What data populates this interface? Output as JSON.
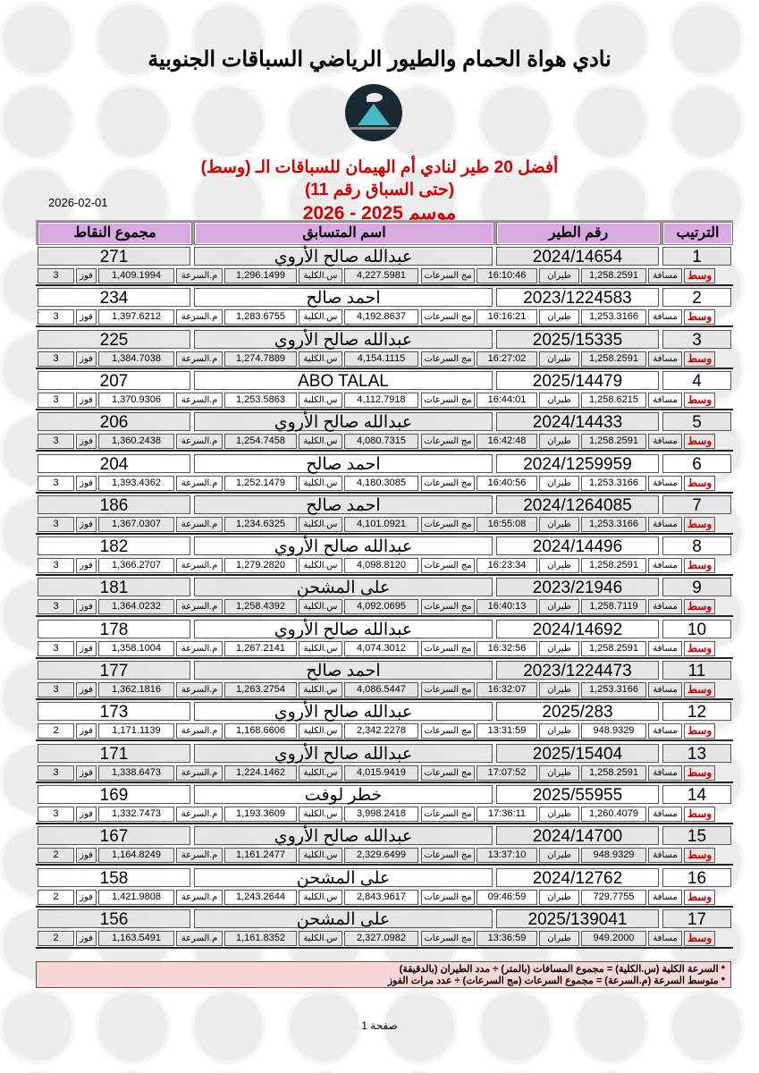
{
  "title": "نادي هواة الحمام والطيور الرياضي السباقات الجنوبية",
  "subtitle": {
    "line1": "أفضل 20 طير لنادي أم الهيمان للسباقات الـ (وسط)",
    "line2": "(حتى السباق رقم 11)",
    "line3": "موسم 2025 - 2026"
  },
  "date": "2026-02-01",
  "headers": {
    "rank": "الترتيب",
    "ring": "رقم الطير",
    "name": "اسم المتسابق",
    "points": "مجموع النقاط"
  },
  "labels": {
    "category": "وسط",
    "distance": "مسافة",
    "flight": "طيران",
    "speed_sum": "مج السرعات",
    "total_speed": "س.الكلية",
    "avg_speed": "م.السرعة",
    "wins": "فوز"
  },
  "rows": [
    {
      "rank": "1",
      "ring": "2024/14654",
      "name": "عبدالله صالح الأروي",
      "points": "271",
      "distance": "1,258.2591",
      "flight": "16:10:46",
      "speed_sum": "4,227.5981",
      "total_speed": "1,296.1499",
      "avg_speed": "1,409.1994",
      "wins": "3"
    },
    {
      "rank": "2",
      "ring": "2023/1224583",
      "name": "احمد صالح",
      "points": "234",
      "distance": "1,253.3166",
      "flight": "16:16:21",
      "speed_sum": "4,192.8637",
      "total_speed": "1,283.6755",
      "avg_speed": "1,397.6212",
      "wins": "3"
    },
    {
      "rank": "3",
      "ring": "2025/15335",
      "name": "عبدالله صالح الأروي",
      "points": "225",
      "distance": "1,258.2591",
      "flight": "16:27:02",
      "speed_sum": "4,154.1115",
      "total_speed": "1,274.7889",
      "avg_speed": "1,384.7038",
      "wins": "3"
    },
    {
      "rank": "4",
      "ring": "2025/14479",
      "name": "ABO  TALAL",
      "points": "207",
      "distance": "1,258.6215",
      "flight": "16:44:01",
      "speed_sum": "4,112.7918",
      "total_speed": "1,253.5863",
      "avg_speed": "1,370.9306",
      "wins": "3"
    },
    {
      "rank": "5",
      "ring": "2024/14433",
      "name": "عبدالله صالح الأروي",
      "points": "206",
      "distance": "1,258.2591",
      "flight": "16:42:48",
      "speed_sum": "4,080.7315",
      "total_speed": "1,254.7458",
      "avg_speed": "1,360.2438",
      "wins": "3"
    },
    {
      "rank": "6",
      "ring": "2024/1259959",
      "name": "احمد صالح",
      "points": "204",
      "distance": "1,253.3166",
      "flight": "16:40:56",
      "speed_sum": "4,180.3085",
      "total_speed": "1,252.1479",
      "avg_speed": "1,393.4362",
      "wins": "3"
    },
    {
      "rank": "7",
      "ring": "2024/1264085",
      "name": "احمد صالح",
      "points": "186",
      "distance": "1,253.3166",
      "flight": "16:55:08",
      "speed_sum": "4,101.0921",
      "total_speed": "1,234.6325",
      "avg_speed": "1,367.0307",
      "wins": "3"
    },
    {
      "rank": "8",
      "ring": "2024/14496",
      "name": "عبدالله صالح الأروي",
      "points": "182",
      "distance": "1,258.2591",
      "flight": "16:23:34",
      "speed_sum": "4,098.8120",
      "total_speed": "1,279.2820",
      "avg_speed": "1,366.2707",
      "wins": "3"
    },
    {
      "rank": "9",
      "ring": "2023/21946",
      "name": "على المشحن",
      "points": "181",
      "distance": "1,258.7119",
      "flight": "16:40:13",
      "speed_sum": "4,092.0695",
      "total_speed": "1,258.4392",
      "avg_speed": "1,364.0232",
      "wins": "3"
    },
    {
      "rank": "10",
      "ring": "2024/14692",
      "name": "عبدالله صالح الأروي",
      "points": "178",
      "distance": "1,258.2591",
      "flight": "16:32:56",
      "speed_sum": "4,074.3012",
      "total_speed": "1,267.2141",
      "avg_speed": "1,358.1004",
      "wins": "3"
    },
    {
      "rank": "11",
      "ring": "2023/1224473",
      "name": "احمد صالح",
      "points": "177",
      "distance": "1,253.3166",
      "flight": "16:32:07",
      "speed_sum": "4,086.5447",
      "total_speed": "1,263.2754",
      "avg_speed": "1,362.1816",
      "wins": "3"
    },
    {
      "rank": "12",
      "ring": "2025/283",
      "name": "عبدالله صالح الأروي",
      "points": "173",
      "distance": "948.9329",
      "flight": "13:31:59",
      "speed_sum": "2,342.2278",
      "total_speed": "1,168.6606",
      "avg_speed": "1,171.1139",
      "wins": "2"
    },
    {
      "rank": "13",
      "ring": "2025/15404",
      "name": "عبدالله صالح الأروي",
      "points": "171",
      "distance": "1,258.2591",
      "flight": "17:07:52",
      "speed_sum": "4,015.9419",
      "total_speed": "1,224.1462",
      "avg_speed": "1,338.6473",
      "wins": "3"
    },
    {
      "rank": "14",
      "ring": "2025/55955",
      "name": "خطر لوفت",
      "points": "169",
      "distance": "1,260.4079",
      "flight": "17:36:11",
      "speed_sum": "3,998.2418",
      "total_speed": "1,193.3609",
      "avg_speed": "1,332.7473",
      "wins": "3"
    },
    {
      "rank": "15",
      "ring": "2024/14700",
      "name": "عبدالله صالح الأروي",
      "points": "167",
      "distance": "948.9329",
      "flight": "13:37:10",
      "speed_sum": "2,329.6499",
      "total_speed": "1,161.2477",
      "avg_speed": "1,164.8249",
      "wins": "2"
    },
    {
      "rank": "16",
      "ring": "2024/12762",
      "name": "على المشحن",
      "points": "158",
      "distance": "729.7755",
      "flight": "09:46:59",
      "speed_sum": "2,843.9617",
      "total_speed": "1,243.2644",
      "avg_speed": "1,421.9808",
      "wins": "2"
    },
    {
      "rank": "17",
      "ring": "2025/139041",
      "name": "على المشحن",
      "points": "156",
      "distance": "949.2000",
      "flight": "13:36:59",
      "speed_sum": "2,327.0982",
      "total_speed": "1,161.8352",
      "avg_speed": "1,163.5491",
      "wins": "2"
    }
  ],
  "footnotes": [
    "* السرعة الكلية (س.الكلية) = مجموع المسافات (بالمتر) ÷ مدد الطيران (بالدقيقة)",
    "* متوسط السرعة (م.السرعة) = مجموع السرعات (مج السرعات) ÷ عدد مرات الفوز"
  ],
  "page_label": "صفحة 1",
  "colors": {
    "header_bg": "#d8a8e0",
    "title_red": "#d00000",
    "footnote_bg": "#f7d6d6"
  }
}
